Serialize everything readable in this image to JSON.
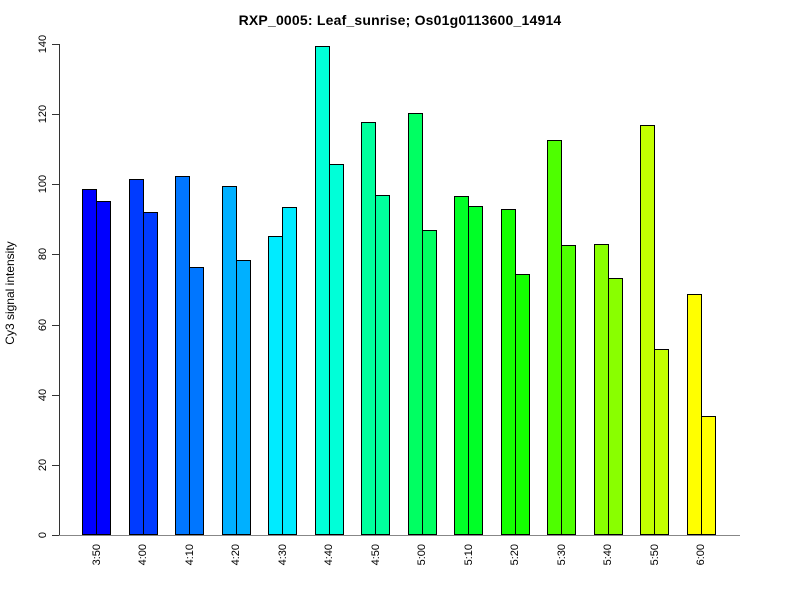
{
  "chart_data": {
    "type": "bar",
    "title": "RXP_0005: Leaf_sunrise; Os01g0113600_14914",
    "xlabel": "",
    "ylabel": "Cy3 signal intensity",
    "ylim": [
      0,
      140
    ],
    "yticks": [
      0,
      20,
      40,
      60,
      80,
      100,
      120,
      140
    ],
    "grid": false,
    "legend": "none",
    "layout": "paired bars per time point, both bars of a pair share one color; rainbow palette blue to yellow across pairs; white background; axis tick labels rotated 90 degrees",
    "categories": [
      "3:50",
      "4:00",
      "4:10",
      "4:20",
      "4:30",
      "4:40",
      "4:50",
      "5:00",
      "5:10",
      "5:20",
      "5:30",
      "5:40",
      "5:50",
      "6:00"
    ],
    "series": [
      {
        "name": "bar-1",
        "values": [
          98.8,
          101.6,
          102.4,
          99.6,
          85.2,
          139.3,
          117.7,
          120.3,
          96.7,
          92.9,
          112.5,
          83.0,
          116.9,
          68.7
        ]
      },
      {
        "name": "bar-2",
        "values": [
          95.2,
          92.2,
          76.5,
          78.4,
          93.4,
          105.9,
          97.0,
          86.9,
          93.7,
          74.4,
          82.8,
          73.2,
          53.0,
          33.8
        ]
      }
    ],
    "bar_colors": [
      "#0000FF",
      "#003BFF",
      "#0076FF",
      "#00B0FF",
      "#00EBFF",
      "#00FFD8",
      "#00FF9D",
      "#00FF62",
      "#00FF27",
      "#14FF00",
      "#4EFF00",
      "#89FF00",
      "#C4FF00",
      "#FFFF00"
    ],
    "bar_border_color": "#000000",
    "axis_color": "#333333",
    "baseline_color": "#878787"
  }
}
